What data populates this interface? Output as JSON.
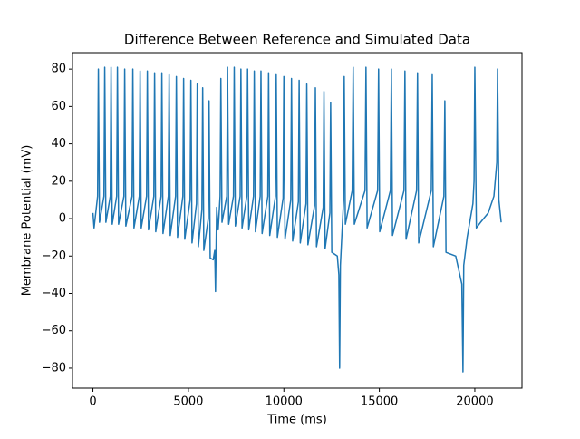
{
  "chart_data": {
    "type": "line",
    "title": "Difference Between Reference and Simulated Data",
    "x_label": "Time (ms)",
    "y_label": "Membrane Potential (mV)",
    "color": "#1f77b4",
    "xlim": [
      -1070,
      22470
    ],
    "ylim": [
      -90.7,
      88.8
    ],
    "xticks": [
      0,
      5000,
      10000,
      15000,
      20000
    ],
    "yticks": [
      {
        "value": -80,
        "label": "−80"
      },
      {
        "value": -60,
        "label": "−60"
      },
      {
        "value": -40,
        "label": "−40"
      },
      {
        "value": -20,
        "label": "−20"
      },
      0,
      20,
      40,
      60,
      80
    ],
    "x": [
      0,
      60,
      245,
      285,
      345,
      578,
      618,
      678,
      910,
      950,
      1010,
      1243,
      1283,
      1343,
      1623,
      1663,
      1723,
      2050,
      2090,
      2150,
      2430,
      2470,
      2530,
      2810,
      2850,
      2910,
      3190,
      3230,
      3290,
      3570,
      3610,
      3670,
      3950,
      3990,
      4050,
      4330,
      4370,
      4430,
      4710,
      4750,
      4810,
      5090,
      5130,
      5190,
      5423,
      5463,
      5523,
      5708,
      5748,
      5808,
      6041,
      6081,
      6141,
      6300,
      6380,
      6420,
      6480,
      6560,
      6660,
      6700,
      6760,
      7010,
      7050,
      7110,
      7360,
      7400,
      7460,
      7710,
      7750,
      7810,
      8060,
      8100,
      8160,
      8410,
      8450,
      8510,
      8760,
      8800,
      8860,
      9160,
      9200,
      9260,
      9560,
      9600,
      9660,
      9960,
      10000,
      10060,
      10360,
      10400,
      10460,
      10760,
      10800,
      10860,
      11160,
      11200,
      11260,
      11610,
      11650,
      11710,
      12060,
      12100,
      12160,
      12410,
      12450,
      12510,
      12800,
      12880,
      12920,
      12960,
      13080,
      13130,
      13160,
      13220,
      13580,
      13630,
      13690,
      14250,
      14300,
      14360,
      14910,
      14960,
      15020,
      15580,
      15630,
      15690,
      16290,
      16340,
      16400,
      16950,
      17000,
      17060,
      17720,
      17770,
      17830,
      18380,
      18430,
      18490,
      19000,
      19320,
      19380,
      19420,
      19600,
      19900,
      19960,
      20000,
      20080,
      20300,
      20700,
      21000,
      21150,
      21190,
      21260,
      21380
    ],
    "values": [
      3,
      -5,
      12,
      80,
      -2,
      12,
      81,
      -2,
      12,
      81,
      -3,
      12,
      81,
      -3,
      12,
      80,
      -4,
      12,
      80,
      -5,
      12,
      79,
      -5,
      12,
      79,
      -6,
      12,
      78,
      -7,
      12,
      78,
      -8,
      12,
      77,
      -9,
      12,
      76,
      -10,
      12,
      75,
      -11,
      10,
      74,
      -13,
      8,
      72,
      -15,
      5,
      70,
      -17,
      0,
      63,
      -21,
      -22,
      -17,
      -39,
      6,
      -6,
      12,
      75,
      -2,
      12,
      81,
      -3,
      12,
      81,
      -4,
      12,
      80,
      -5,
      12,
      80,
      -6,
      12,
      79,
      -7,
      12,
      79,
      -8,
      12,
      78,
      -9,
      12,
      77,
      -10,
      11,
      76,
      -11,
      10,
      75,
      -12,
      9,
      74,
      -13,
      8,
      72,
      -14,
      7,
      70,
      -15,
      6,
      68,
      -16,
      3,
      62,
      -18,
      -20,
      -30,
      -80,
      -25,
      0,
      10,
      76,
      -3,
      15,
      81,
      -3,
      15,
      81,
      -5,
      15,
      80,
      -7,
      15,
      80,
      -9,
      15,
      79,
      -11,
      15,
      78,
      -13,
      15,
      77,
      -15,
      12,
      63,
      -18,
      -20,
      -35,
      -82,
      -25,
      -10,
      8,
      20,
      81,
      -5,
      -2,
      3,
      12,
      30,
      80,
      10,
      -2
    ]
  }
}
